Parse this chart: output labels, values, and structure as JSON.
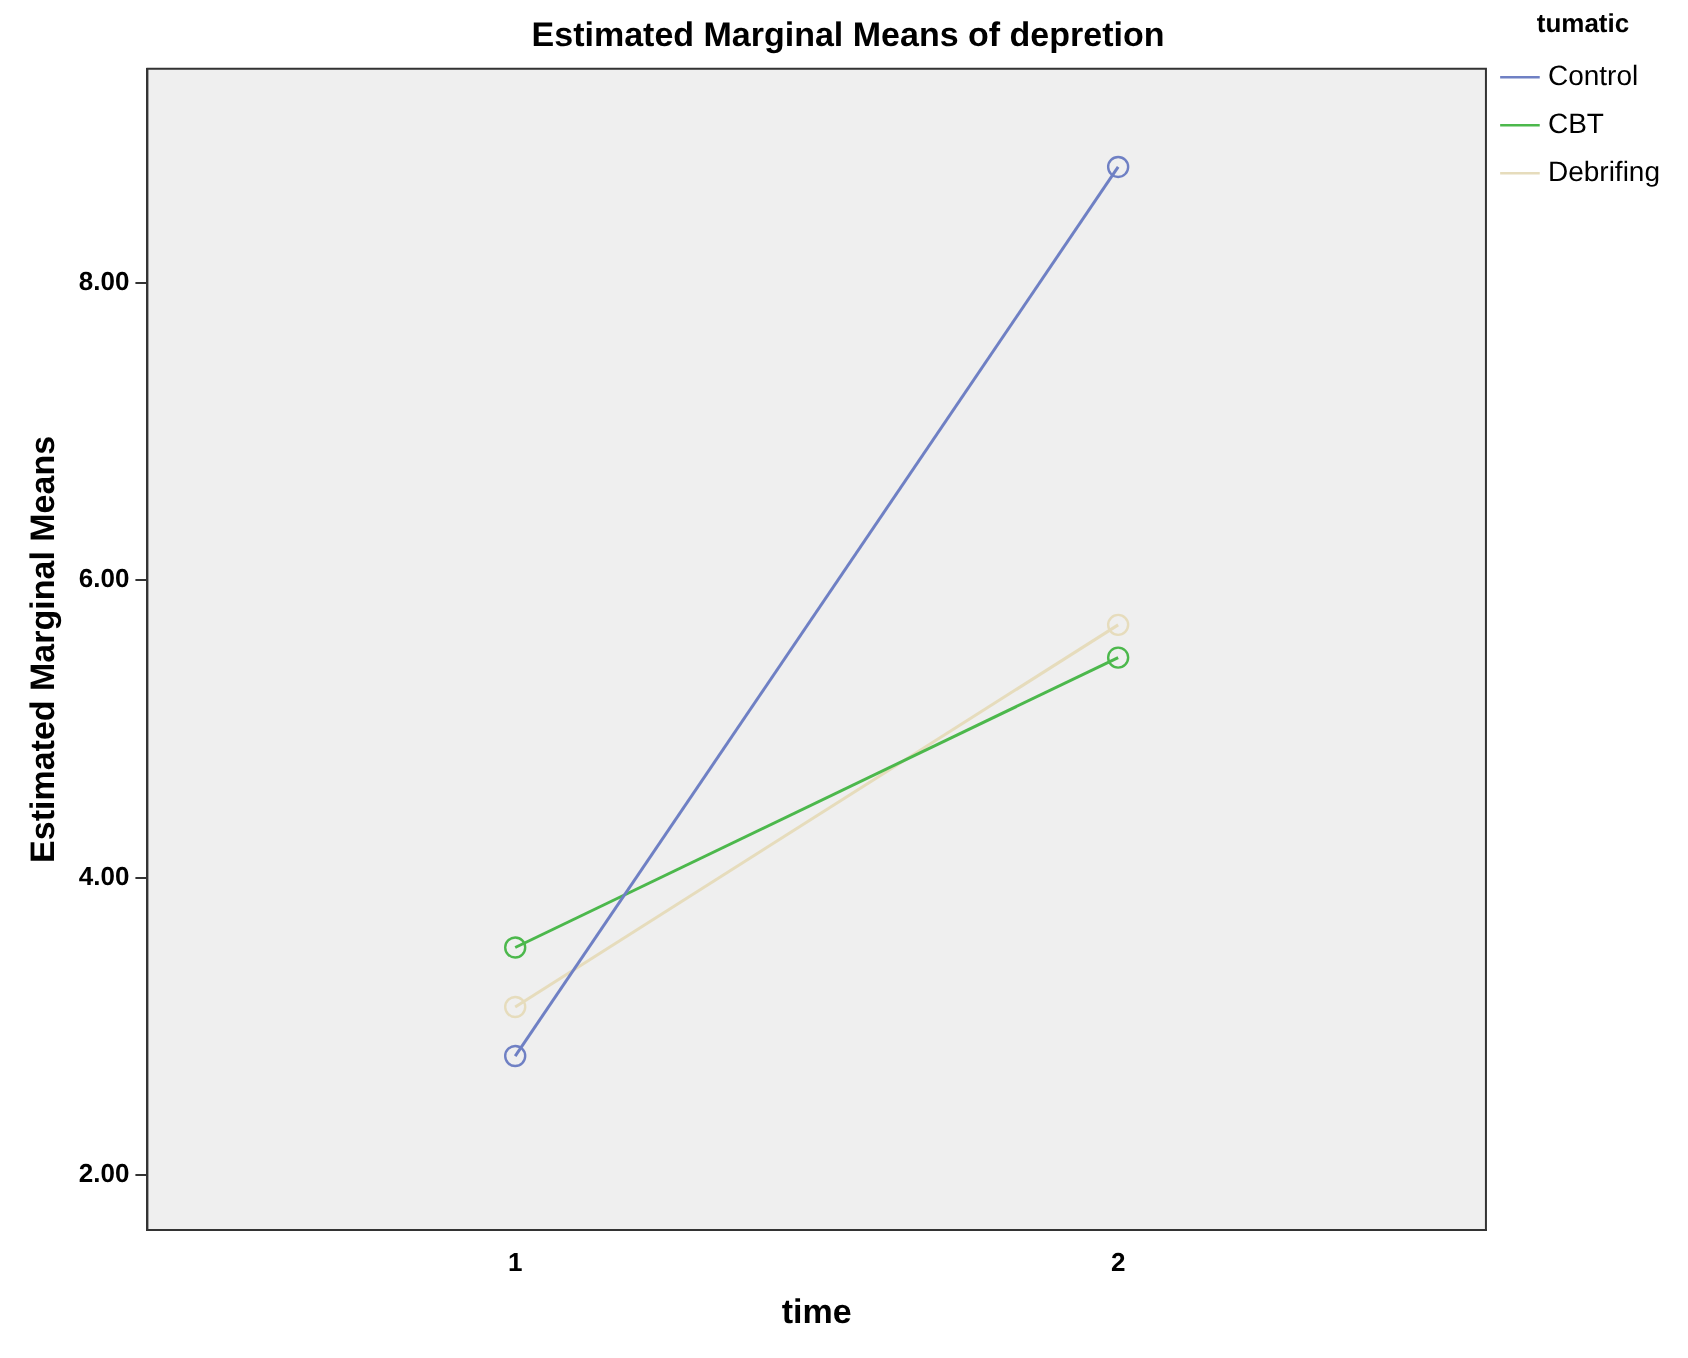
{
  "chart_data": {
    "type": "line",
    "title": "Estimated Marginal Means of depretion",
    "xlabel": "time",
    "ylabel": "Estimated Marginal Means",
    "legend_title": "tumatic",
    "x": [
      1,
      2
    ],
    "xlim": [
      0.39,
      2.61
    ],
    "xticks": [
      1,
      2
    ],
    "ylim": [
      1.63,
      9.44
    ],
    "yticks": [
      {
        "value": 2,
        "label": "2.00"
      },
      {
        "value": 4,
        "label": "4.00"
      },
      {
        "value": 6,
        "label": "6.00"
      },
      {
        "value": 8,
        "label": "8.00"
      }
    ],
    "series": [
      {
        "name": "Control",
        "color": "#6f80c4",
        "values": [
          2.8,
          8.78
        ]
      },
      {
        "name": "CBT",
        "color": "#4cb84c",
        "values": [
          3.53,
          5.48
        ]
      },
      {
        "name": "Debrifing",
        "color": "#e6dcbc",
        "values": [
          3.13,
          5.7
        ]
      }
    ],
    "grid": false,
    "legend": "top right",
    "marker": "circle",
    "line_style": "solid"
  }
}
